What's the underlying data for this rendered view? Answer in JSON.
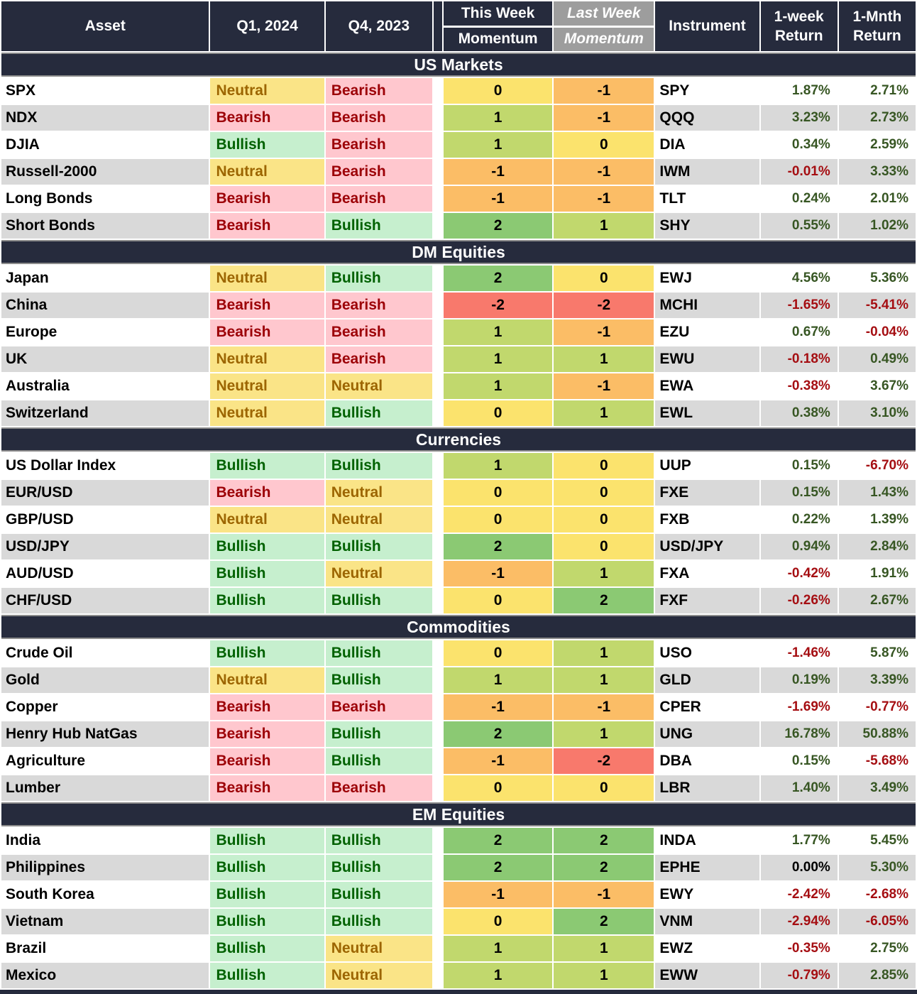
{
  "colors": {
    "navy": "#262B3D",
    "band_border": "#8C8C8C",
    "last_week_header_bg": "#9D9D9D",
    "row_alt_gray": "#D9D9D9",
    "row_white": "#FFFFFF",
    "sentiment": {
      "Bullish": {
        "bg": "#C6EFCE",
        "text": "#006100"
      },
      "Bearish": {
        "bg": "#FFC7CE",
        "text": "#9C0006"
      },
      "Neutral": {
        "bg": "#FAE487",
        "text": "#9C6500"
      }
    },
    "momentum_scale": {
      "-2": "#F8796C",
      "-1": "#FBBD66",
      "0": "#FBE36D",
      "1": "#C1D86D",
      "2": "#8BC973"
    },
    "return_positive": "#375623",
    "return_negative": "#A50E12",
    "return_zero": "#000000"
  },
  "header": {
    "asset": "Asset",
    "q1": "Q1, 2024",
    "q4": "Q4, 2023",
    "this_week_line1": "This Week",
    "this_week_line2": "Momentum",
    "last_week_line1": "Last Week",
    "last_week_line2": "Momentum",
    "instrument": "Instrument",
    "week_return": "1-week\nReturn",
    "month_return": "1-Mnth\nReturn"
  },
  "chart_data": {
    "type": "table",
    "columns": [
      "Asset",
      "Q1, 2024",
      "Q4, 2023",
      "This Week Momentum",
      "Last Week Momentum",
      "Instrument",
      "1-week Return",
      "1-Mnth Return"
    ],
    "sections": [
      {
        "title": "US Markets",
        "rows": [
          {
            "asset": "SPX",
            "q1": "Neutral",
            "q4": "Bearish",
            "this_week": 0,
            "last_week": -1,
            "instrument": "SPY",
            "week_return": "1.87%",
            "month_return": "2.71%"
          },
          {
            "asset": "NDX",
            "q1": "Bearish",
            "q4": "Bearish",
            "this_week": 1,
            "last_week": -1,
            "instrument": "QQQ",
            "week_return": "3.23%",
            "month_return": "2.73%"
          },
          {
            "asset": "DJIA",
            "q1": "Bullish",
            "q4": "Bearish",
            "this_week": 1,
            "last_week": 0,
            "instrument": "DIA",
            "week_return": "0.34%",
            "month_return": "2.59%"
          },
          {
            "asset": "Russell-2000",
            "q1": "Neutral",
            "q4": "Bearish",
            "this_week": -1,
            "last_week": -1,
            "instrument": "IWM",
            "week_return": "-0.01%",
            "month_return": "3.33%"
          },
          {
            "asset": "Long Bonds",
            "q1": "Bearish",
            "q4": "Bearish",
            "this_week": -1,
            "last_week": -1,
            "instrument": "TLT",
            "week_return": "0.24%",
            "month_return": "2.01%"
          },
          {
            "asset": "Short Bonds",
            "q1": "Bearish",
            "q4": "Bullish",
            "this_week": 2,
            "last_week": 1,
            "instrument": "SHY",
            "week_return": "0.55%",
            "month_return": "1.02%"
          }
        ]
      },
      {
        "title": "DM Equities",
        "rows": [
          {
            "asset": "Japan",
            "q1": "Neutral",
            "q4": "Bullish",
            "this_week": 2,
            "last_week": 0,
            "instrument": "EWJ",
            "week_return": "4.56%",
            "month_return": "5.36%"
          },
          {
            "asset": "China",
            "q1": "Bearish",
            "q4": "Bearish",
            "this_week": -2,
            "last_week": -2,
            "instrument": "MCHI",
            "week_return": "-1.65%",
            "month_return": "-5.41%"
          },
          {
            "asset": "Europe",
            "q1": "Bearish",
            "q4": "Bearish",
            "this_week": 1,
            "last_week": -1,
            "instrument": "EZU",
            "week_return": "0.67%",
            "month_return": "-0.04%"
          },
          {
            "asset": "UK",
            "q1": "Neutral",
            "q4": "Bearish",
            "this_week": 1,
            "last_week": 1,
            "instrument": "EWU",
            "week_return": "-0.18%",
            "month_return": "0.49%"
          },
          {
            "asset": "Australia",
            "q1": "Neutral",
            "q4": "Neutral",
            "this_week": 1,
            "last_week": -1,
            "instrument": "EWA",
            "week_return": "-0.38%",
            "month_return": "3.67%"
          },
          {
            "asset": "Switzerland",
            "q1": "Neutral",
            "q4": "Bullish",
            "this_week": 0,
            "last_week": 1,
            "instrument": "EWL",
            "week_return": "0.38%",
            "month_return": "3.10%"
          }
        ]
      },
      {
        "title": "Currencies",
        "rows": [
          {
            "asset": "US Dollar Index",
            "q1": "Bullish",
            "q4": "Bullish",
            "this_week": 1,
            "last_week": 0,
            "instrument": "UUP",
            "week_return": "0.15%",
            "month_return": "-6.70%"
          },
          {
            "asset": "EUR/USD",
            "q1": "Bearish",
            "q4": "Neutral",
            "this_week": 0,
            "last_week": 0,
            "instrument": "FXE",
            "week_return": "0.15%",
            "month_return": "1.43%"
          },
          {
            "asset": "GBP/USD",
            "q1": "Neutral",
            "q4": "Neutral",
            "this_week": 0,
            "last_week": 0,
            "instrument": "FXB",
            "week_return": "0.22%",
            "month_return": "1.39%"
          },
          {
            "asset": "USD/JPY",
            "q1": "Bullish",
            "q4": "Bullish",
            "this_week": 2,
            "last_week": 0,
            "instrument": "USD/JPY",
            "week_return": "0.94%",
            "month_return": "2.84%"
          },
          {
            "asset": "AUD/USD",
            "q1": "Bullish",
            "q4": "Neutral",
            "this_week": -1,
            "last_week": 1,
            "instrument": "FXA",
            "week_return": "-0.42%",
            "month_return": "1.91%"
          },
          {
            "asset": "CHF/USD",
            "q1": "Bullish",
            "q4": "Bullish",
            "this_week": 0,
            "last_week": 2,
            "instrument": "FXF",
            "week_return": "-0.26%",
            "month_return": "2.67%"
          }
        ]
      },
      {
        "title": "Commodities",
        "rows": [
          {
            "asset": "Crude Oil",
            "q1": "Bullish",
            "q4": "Bullish",
            "this_week": 0,
            "last_week": 1,
            "instrument": "USO",
            "week_return": "-1.46%",
            "month_return": "5.87%"
          },
          {
            "asset": "Gold",
            "q1": "Neutral",
            "q4": "Bullish",
            "this_week": 1,
            "last_week": 1,
            "instrument": "GLD",
            "week_return": "0.19%",
            "month_return": "3.39%"
          },
          {
            "asset": "Copper",
            "q1": "Bearish",
            "q4": "Bearish",
            "this_week": -1,
            "last_week": -1,
            "instrument": "CPER",
            "week_return": "-1.69%",
            "month_return": "-0.77%"
          },
          {
            "asset": "Henry Hub NatGas",
            "q1": "Bearish",
            "q4": "Bullish",
            "this_week": 2,
            "last_week": 1,
            "instrument": "UNG",
            "week_return": "16.78%",
            "month_return": "50.88%"
          },
          {
            "asset": "Agriculture",
            "q1": "Bearish",
            "q4": "Bullish",
            "this_week": -1,
            "last_week": -2,
            "instrument": "DBA",
            "week_return": "0.15%",
            "month_return": "-5.68%"
          },
          {
            "asset": "Lumber",
            "q1": "Bearish",
            "q4": "Bearish",
            "this_week": 0,
            "last_week": 0,
            "instrument": "LBR",
            "week_return": "1.40%",
            "month_return": "3.49%"
          }
        ]
      },
      {
        "title": "EM Equities",
        "rows": [
          {
            "asset": "India",
            "q1": "Bullish",
            "q4": "Bullish",
            "this_week": 2,
            "last_week": 2,
            "instrument": "INDA",
            "week_return": "1.77%",
            "month_return": "5.45%"
          },
          {
            "asset": "Philippines",
            "q1": "Bullish",
            "q4": "Bullish",
            "this_week": 2,
            "last_week": 2,
            "instrument": "EPHE",
            "week_return": "0.00%",
            "month_return": "5.30%"
          },
          {
            "asset": "South Korea",
            "q1": "Bullish",
            "q4": "Bullish",
            "this_week": -1,
            "last_week": -1,
            "instrument": "EWY",
            "week_return": "-2.42%",
            "month_return": "-2.68%"
          },
          {
            "asset": "Vietnam",
            "q1": "Bullish",
            "q4": "Bullish",
            "this_week": 0,
            "last_week": 2,
            "instrument": "VNM",
            "week_return": "-2.94%",
            "month_return": "-6.05%"
          },
          {
            "asset": "Brazil",
            "q1": "Bullish",
            "q4": "Neutral",
            "this_week": 1,
            "last_week": 1,
            "instrument": "EWZ",
            "week_return": "-0.35%",
            "month_return": "2.75%"
          },
          {
            "asset": "Mexico",
            "q1": "Bullish",
            "q4": "Neutral",
            "this_week": 1,
            "last_week": 1,
            "instrument": "EWW",
            "week_return": "-0.79%",
            "month_return": "2.85%"
          }
        ]
      }
    ]
  }
}
